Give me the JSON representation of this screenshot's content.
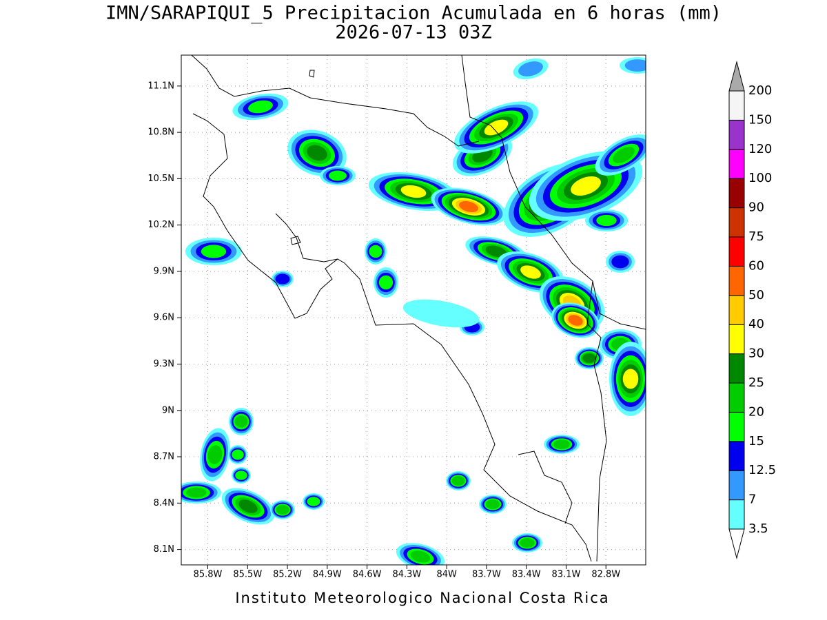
{
  "title": "IMN/SARAPIQUI_5 Precipitacion Acumulada en 6 horas (mm)",
  "subtitle": "2026-07-13 03Z",
  "footer": "Instituto Meteorologico Nacional Costa Rica",
  "map": {
    "xlim": [
      -86.0,
      -82.5
    ],
    "ylim": [
      8.0,
      11.3
    ],
    "grid": true,
    "xticks": [
      {
        "value": -85.8,
        "label": "85.8W"
      },
      {
        "value": -85.5,
        "label": "85.5W"
      },
      {
        "value": -85.2,
        "label": "85.2W"
      },
      {
        "value": -84.9,
        "label": "84.9W"
      },
      {
        "value": -84.6,
        "label": "84.6W"
      },
      {
        "value": -84.3,
        "label": "84.3W"
      },
      {
        "value": -84.0,
        "label": "84W"
      },
      {
        "value": -83.7,
        "label": "83.7W"
      },
      {
        "value": -83.4,
        "label": "83.4W"
      },
      {
        "value": -83.1,
        "label": "83.1W"
      },
      {
        "value": -82.8,
        "label": "82.8W"
      }
    ],
    "yticks": [
      {
        "value": 8.1,
        "label": "8.1N"
      },
      {
        "value": 8.4,
        "label": "8.4N"
      },
      {
        "value": 8.7,
        "label": "8.7N"
      },
      {
        "value": 9.0,
        "label": "9N"
      },
      {
        "value": 9.3,
        "label": "9.3N"
      },
      {
        "value": 9.6,
        "label": "9.6N"
      },
      {
        "value": 9.9,
        "label": "9.9N"
      },
      {
        "value": 10.2,
        "label": "10.2N"
      },
      {
        "value": 10.5,
        "label": "10.5N"
      },
      {
        "value": 10.8,
        "label": "10.8N"
      },
      {
        "value": 11.1,
        "label": "11.1N"
      }
    ]
  },
  "colorbar": {
    "levels": [
      3.5,
      7,
      12.5,
      15,
      20,
      25,
      30,
      40,
      50,
      60,
      75,
      90,
      100,
      120,
      150,
      200
    ],
    "colors": [
      "#66ffff",
      "#3399ff",
      "#0000ee",
      "#00ff00",
      "#00cc00",
      "#008800",
      "#ffff00",
      "#ffcc00",
      "#ff6600",
      "#ff0000",
      "#cc3300",
      "#990000",
      "#ff00ff",
      "#9933cc",
      "#f5f5f5"
    ],
    "over_color": "#aaaaaa",
    "under_color": "#ffffff"
  }
}
